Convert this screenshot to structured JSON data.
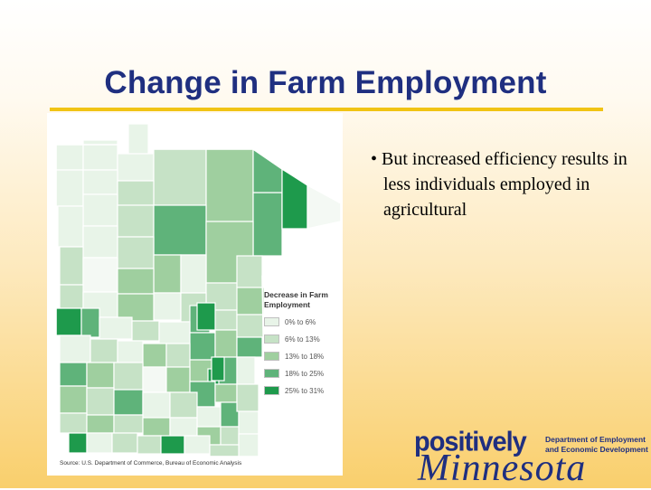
{
  "slide": {
    "title": "Change in Farm Employment",
    "bullet": "• But increased efficiency results in less individuals employed in agricultural"
  },
  "map": {
    "legend_title": "Decrease in Farm Employment",
    "legend": [
      {
        "label": "0% to 6%",
        "color": "#e8f4e8"
      },
      {
        "label": "6% to 13%",
        "color": "#c6e2c6"
      },
      {
        "label": "13% to 18%",
        "color": "#9fcf9f"
      },
      {
        "label": "18% to 25%",
        "color": "#5fb37a"
      },
      {
        "label": "25% to 31%",
        "color": "#1e9a4c"
      }
    ],
    "source": "Source: U.S. Department of Commerce, Bureau of Economic Analysis"
  },
  "logo": {
    "word1": "positively",
    "word2": "Minnesota",
    "dept_line1": "Department of Employment",
    "dept_line2": "and Economic Development"
  }
}
